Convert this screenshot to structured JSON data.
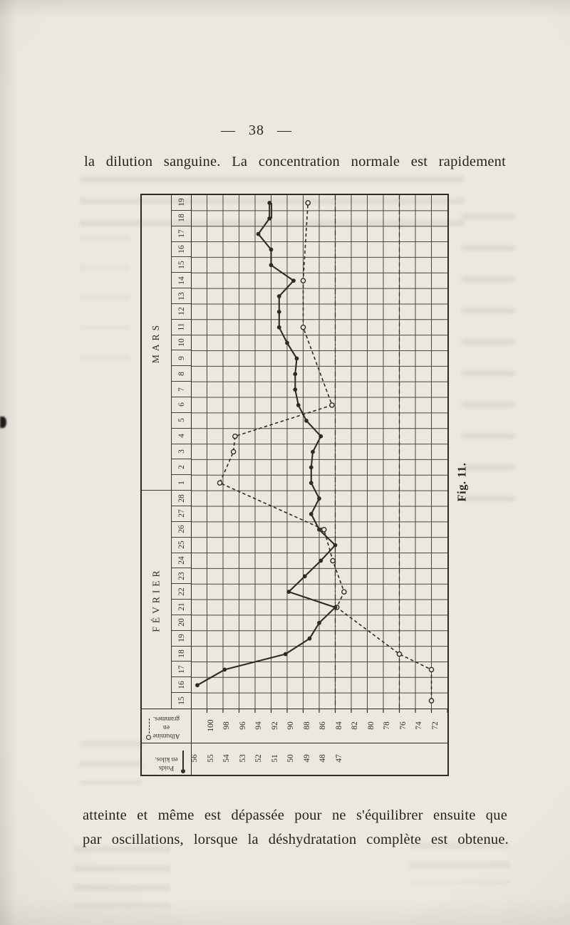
{
  "page": {
    "number": "— 38 —",
    "top_text": "la dilution sanguine. La concentration normale est rapidement",
    "bottom_text_line1": "atteinte et même est dépassée pour ne s'équilibrer ensuite que",
    "bottom_text_line2": "par oscillations, lorsque la déshydratation complète est obtenue."
  },
  "figure": {
    "caption": "Fig. 11.",
    "months": [
      {
        "label": "MARS",
        "days": [
          19,
          18,
          17,
          16,
          15,
          14,
          13,
          12,
          11,
          10,
          9,
          8,
          7,
          6,
          5,
          4,
          3,
          2,
          1
        ]
      },
      {
        "label": "FÉVRIER",
        "days": [
          28,
          27,
          26,
          25,
          24,
          23,
          22,
          21,
          20,
          19,
          18,
          17,
          16,
          15
        ]
      }
    ],
    "axes": [
      {
        "title_lines": [
          "Albumine",
          "en",
          "grammes."
        ],
        "symbol": "dashed-line-open-circle",
        "values": [
          100,
          98,
          96,
          94,
          92,
          90,
          88,
          86,
          84,
          82,
          80,
          78,
          76,
          74,
          72
        ]
      },
      {
        "title_lines": [
          "Poids",
          "en kilos."
        ],
        "symbol": "solid-line-filled-dot",
        "values": [
          56,
          55,
          54,
          53,
          52,
          51,
          50,
          49,
          48,
          47
        ]
      }
    ]
  },
  "chart_data": {
    "type": "line",
    "title": "Fig. 11.",
    "orientation": "figure rotated 90°: time axis runs vertically from 15 février (bottom) to 19 mars (top); values increase right-to-left",
    "x_axis": {
      "label": "dates",
      "months": [
        "FÉVRIER",
        "MARS"
      ],
      "range": [
        "15 février",
        "19 mars"
      ]
    },
    "value_axes": [
      {
        "name": "Poids en kilos.",
        "range": [
          56,
          47
        ],
        "tick_step": 1
      },
      {
        "name": "Albumine en grammes.",
        "range": [
          100,
          72
        ],
        "tick_step": 2
      }
    ],
    "grid": true,
    "series": [
      {
        "name": "Poids en kilos.",
        "unit": "kg",
        "line": "solid",
        "marker": "filled-dot",
        "points": [
          {
            "m": "fev",
            "day": 16,
            "value": 55.6
          },
          {
            "m": "fev",
            "day": 17,
            "value": 53.9
          },
          {
            "m": "fev",
            "day": 18,
            "value": 50.1
          },
          {
            "m": "fev",
            "day": 19,
            "value": 48.6
          },
          {
            "m": "fev",
            "day": 20,
            "value": 48.0
          },
          {
            "m": "fev",
            "day": 21,
            "value": 47.0
          },
          {
            "m": "fev",
            "day": 22,
            "value": 49.9
          },
          {
            "m": "fev",
            "day": 23,
            "value": 48.9
          },
          {
            "m": "fev",
            "day": 24,
            "value": 47.9
          },
          {
            "m": "fev",
            "day": 25,
            "value": 47.0
          },
          {
            "m": "fev",
            "day": 26,
            "value": 48.0
          },
          {
            "m": "fev",
            "day": 27,
            "value": 48.5
          },
          {
            "m": "fev",
            "day": 28,
            "value": 48.0
          },
          {
            "m": "mars",
            "day": 1,
            "value": 48.5
          },
          {
            "m": "mars",
            "day": 2,
            "value": 48.5
          },
          {
            "m": "mars",
            "day": 3,
            "value": 48.4
          },
          {
            "m": "mars",
            "day": 4,
            "value": 47.9
          },
          {
            "m": "mars",
            "day": 5,
            "value": 48.8
          },
          {
            "m": "mars",
            "day": 6,
            "value": 49.3
          },
          {
            "m": "mars",
            "day": 7,
            "value": 49.5
          },
          {
            "m": "mars",
            "day": 8,
            "value": 49.5
          },
          {
            "m": "mars",
            "day": 9,
            "value": 49.4
          },
          {
            "m": "mars",
            "day": 10,
            "value": 50.0
          },
          {
            "m": "mars",
            "day": 11,
            "value": 50.5
          },
          {
            "m": "mars",
            "day": 12,
            "value": 50.5
          },
          {
            "m": "mars",
            "day": 13,
            "value": 50.5
          },
          {
            "m": "mars",
            "day": 14,
            "value": 49.6
          },
          {
            "m": "mars",
            "day": 15,
            "value": 51.0
          },
          {
            "m": "mars",
            "day": 16,
            "value": 51.0
          },
          {
            "m": "mars",
            "day": 17,
            "value": 51.8
          },
          {
            "m": "mars",
            "day": 18,
            "value": 51.1
          },
          {
            "m": "mars",
            "day": 19,
            "value": 51.1
          }
        ],
        "double_stroke_last_segment": true
      },
      {
        "name": "Albumine en grammes.",
        "unit": "g",
        "line": "dashed",
        "marker": "open-circle",
        "points": [
          {
            "m": "fev",
            "day": 15,
            "value": 72.0
          },
          {
            "m": "fev",
            "day": 17,
            "value": 72.0
          },
          {
            "m": "fev",
            "day": 18,
            "value": 76.0
          },
          {
            "m": "fev",
            "day": 21,
            "value": 83.8
          },
          {
            "m": "fev",
            "day": 22,
            "value": 82.9
          },
          {
            "m": "fev",
            "day": 24,
            "value": 84.3
          },
          {
            "m": "fev",
            "day": 26,
            "value": 85.4
          },
          {
            "m": "mars",
            "day": 1,
            "value": 98.4
          },
          {
            "m": "mars",
            "day": 3,
            "value": 96.7
          },
          {
            "m": "mars",
            "day": 4,
            "value": 96.5
          },
          {
            "m": "mars",
            "day": 6,
            "value": 84.4
          },
          {
            "m": "mars",
            "day": 11,
            "value": 88.0
          },
          {
            "m": "mars",
            "day": 14,
            "value": 88.0
          },
          {
            "m": "mars",
            "day": 19,
            "value": 87.4
          }
        ]
      }
    ],
    "reference_lines": [
      {
        "axis": "Albumine en grammes.",
        "value": 84,
        "style": "dash-dot"
      },
      {
        "axis": "Albumine en grammes.",
        "value": 76,
        "style": "dashed"
      }
    ],
    "colors": {
      "ink": "#2e2b25",
      "grid": "#4b4741",
      "paper": "#ebe8e2"
    }
  }
}
